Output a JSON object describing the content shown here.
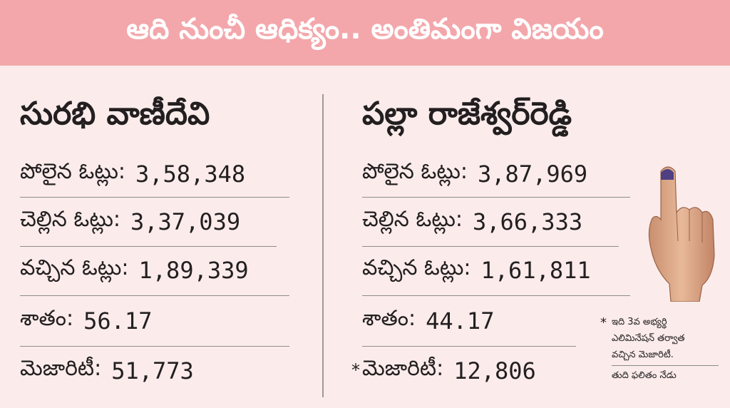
{
  "banner": {
    "title": "ఆది నుంచీ ఆధిక్యం.. అంతిమంగా విజయం"
  },
  "colors": {
    "banner_bg": "#f3a7ab",
    "page_bg": "#fbeceb",
    "text": "#231f20"
  },
  "left": {
    "name": "సురభి వాణీదేవి",
    "rows": [
      {
        "label": "పోలైన ఓట్లు:",
        "value": "3,58,348"
      },
      {
        "label": "చెల్లిన ఓట్లు:",
        "value": "3,37,039"
      },
      {
        "label": "వచ్చిన ఓట్లు:",
        "value": "1,89,339"
      },
      {
        "label": "శాతం:",
        "value": "56.17"
      },
      {
        "label": "మెజారిటీ:",
        "value": "51,773"
      }
    ]
  },
  "right": {
    "name": "పల్లా రాజేశ్వర్‌రెడ్డి",
    "rows": [
      {
        "label": "పోలైన ఓట్లు:",
        "value": "3,87,969"
      },
      {
        "label": "చెల్లిన ఓట్లు:",
        "value": "3,66,333"
      },
      {
        "label": "వచ్చిన ఓట్లు:",
        "value": "1,61,811"
      },
      {
        "label": "శాతం:",
        "value": "44.17"
      },
      {
        "label": "మెజారిటీ:",
        "value": "12,806"
      }
    ],
    "majority_marker": "*"
  },
  "footnote": {
    "marker": "*",
    "lines": [
      "ఇది 3వ అభ్యర్థి",
      "ఎలిమినేషన్ తర్వాత",
      "వచ్చిన మెజారిటీ."
    ],
    "result_line": "తుది ఫలితం నేడు"
  },
  "icons": {
    "hand": "inked-finger-hand-icon"
  }
}
